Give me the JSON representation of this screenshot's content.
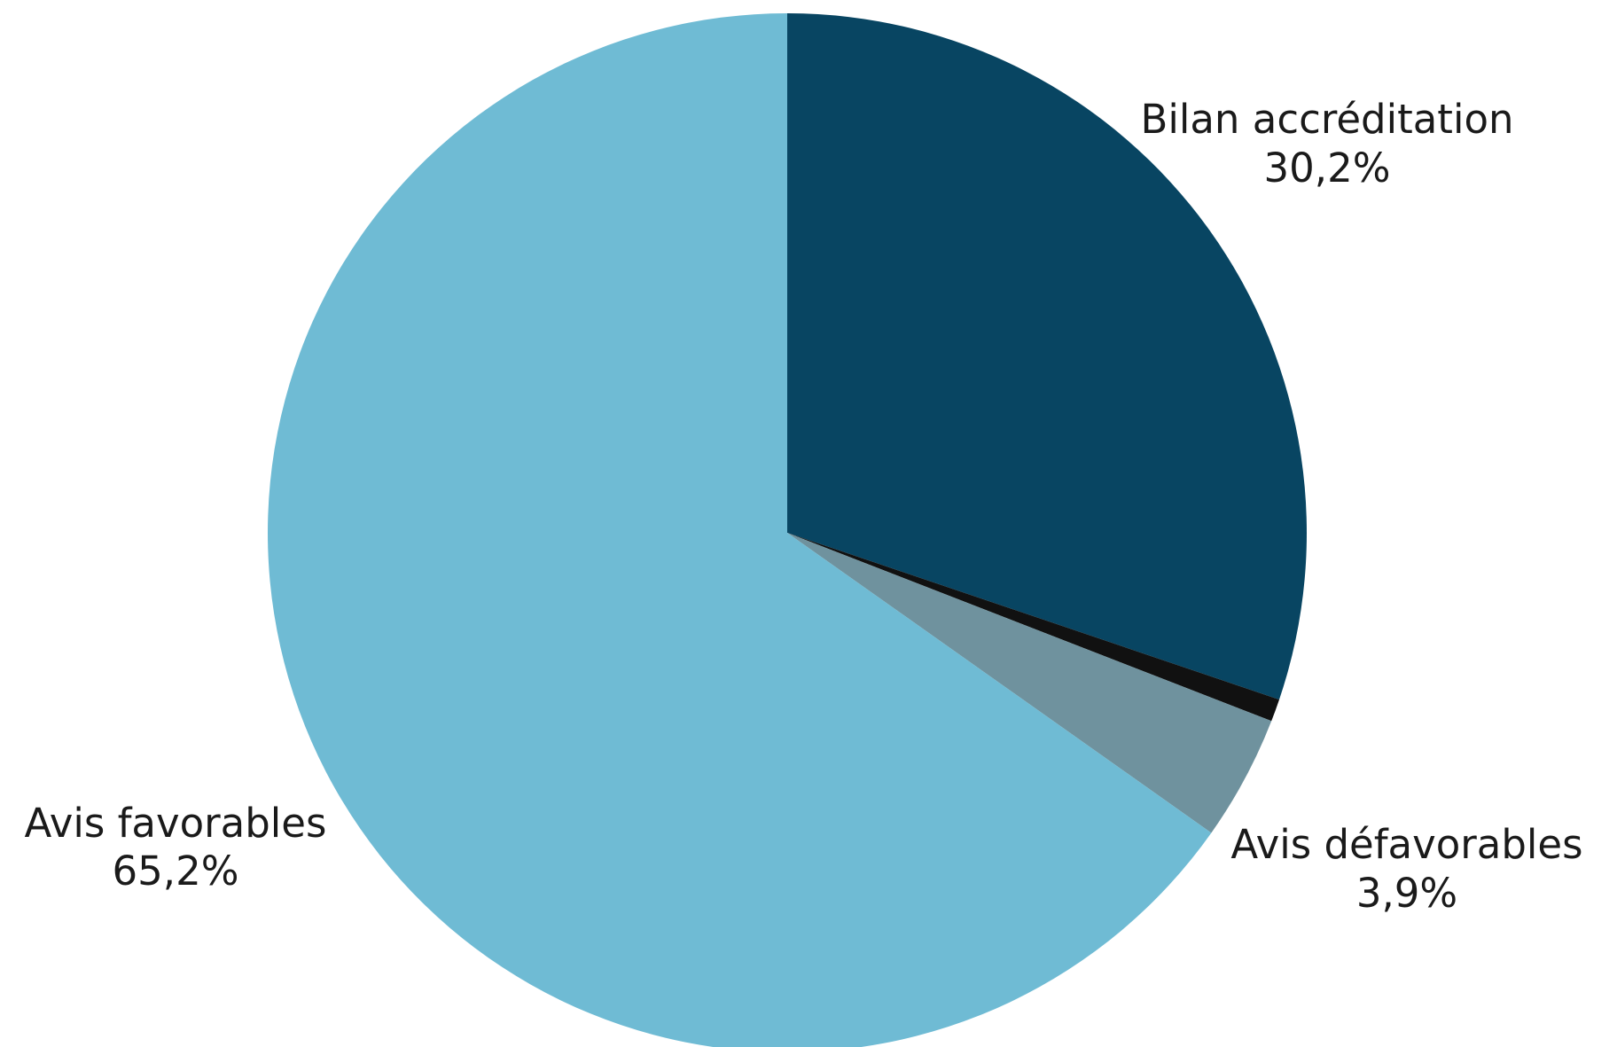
{
  "chart_data": {
    "type": "pie",
    "title": "",
    "start_angle_deg": 0,
    "direction": "clockwise",
    "slices": [
      {
        "label": "Bilan accréditation",
        "value": 30.2,
        "value_label": "30,2%",
        "color": "#084562"
      },
      {
        "label": "",
        "value": 0.7,
        "value_label": "",
        "color": "#111111"
      },
      {
        "label": "Avis défavorables",
        "value": 3.9,
        "value_label": "3,9%",
        "color": "#6f929e"
      },
      {
        "label": "Avis favorables",
        "value": 65.2,
        "value_label": "65,2%",
        "color": "#6fbbd4"
      }
    ]
  }
}
